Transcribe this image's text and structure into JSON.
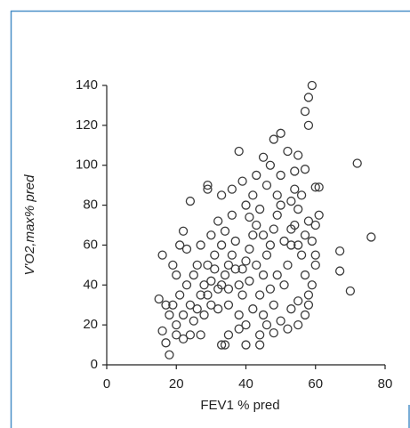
{
  "chart_data": {
    "type": "scatter",
    "xlabel": "FEV1 % pred",
    "ylabel": "V'O2,max% pred",
    "xlim": [
      0,
      80
    ],
    "xticks": [
      0,
      20,
      40,
      60,
      80
    ],
    "ylim": [
      0,
      140
    ],
    "yticks": [
      0,
      20,
      40,
      60,
      80,
      100,
      120,
      140
    ],
    "series": [
      {
        "color": "#3a3a3a",
        "x": [
          59,
          58,
          57,
          58,
          50,
          48,
          52,
          38,
          45,
          72,
          76,
          67,
          67,
          70,
          60,
          61,
          29,
          29,
          24,
          16,
          15,
          16,
          18,
          17,
          33,
          34,
          40,
          44,
          48,
          55,
          54,
          57,
          60,
          61,
          20,
          22,
          19,
          21,
          23,
          25,
          20,
          24,
          26,
          27,
          28,
          30,
          29,
          31,
          33,
          32,
          34,
          35,
          36,
          37,
          38,
          39,
          40,
          41,
          42,
          43,
          44,
          45,
          46,
          47,
          48,
          49,
          50,
          51,
          52,
          53,
          54,
          55,
          56,
          57,
          58,
          59,
          60,
          58,
          56,
          54,
          50,
          46,
          42,
          40,
          36,
          32,
          30,
          27,
          23,
          21,
          22,
          19,
          25,
          28,
          30,
          32,
          35,
          38,
          40,
          42,
          45,
          48,
          50,
          53,
          55,
          57,
          59,
          24,
          27,
          35,
          38,
          44,
          46,
          52,
          55,
          58,
          60,
          33,
          36,
          43,
          47,
          39,
          41,
          44,
          49,
          53,
          26,
          34,
          37,
          39,
          41,
          43,
          47,
          49,
          51,
          53,
          55,
          57,
          45,
          31,
          29,
          33,
          35,
          18,
          17,
          20,
          22
        ],
        "values": [
          140,
          134,
          127,
          120,
          116,
          113,
          107,
          107,
          104,
          101,
          64,
          57,
          47,
          37,
          89,
          89,
          90,
          88,
          82,
          55,
          33,
          17,
          5,
          11,
          10,
          10,
          10,
          10,
          16,
          105,
          97,
          98,
          70,
          75,
          20,
          25,
          30,
          35,
          40,
          45,
          45,
          30,
          28,
          35,
          40,
          42,
          50,
          55,
          60,
          38,
          45,
          50,
          55,
          62,
          40,
          48,
          52,
          58,
          65,
          70,
          35,
          45,
          55,
          60,
          68,
          75,
          80,
          40,
          50,
          60,
          70,
          78,
          55,
          45,
          35,
          62,
          50,
          72,
          85,
          88,
          95,
          90,
          85,
          80,
          75,
          72,
          65,
          60,
          58,
          60,
          67,
          50,
          22,
          25,
          30,
          28,
          30,
          25,
          20,
          28,
          25,
          30,
          22,
          28,
          32,
          25,
          40,
          15,
          15,
          15,
          18,
          15,
          20,
          18,
          20,
          30,
          55,
          85,
          88,
          95,
          100,
          92,
          74,
          78,
          85,
          82,
          50,
          67,
          48,
          35,
          42,
          50,
          38,
          45,
          62,
          68,
          60,
          65,
          65,
          48,
          35,
          40,
          38,
          25,
          30,
          15,
          13
        ]
      }
    ]
  }
}
